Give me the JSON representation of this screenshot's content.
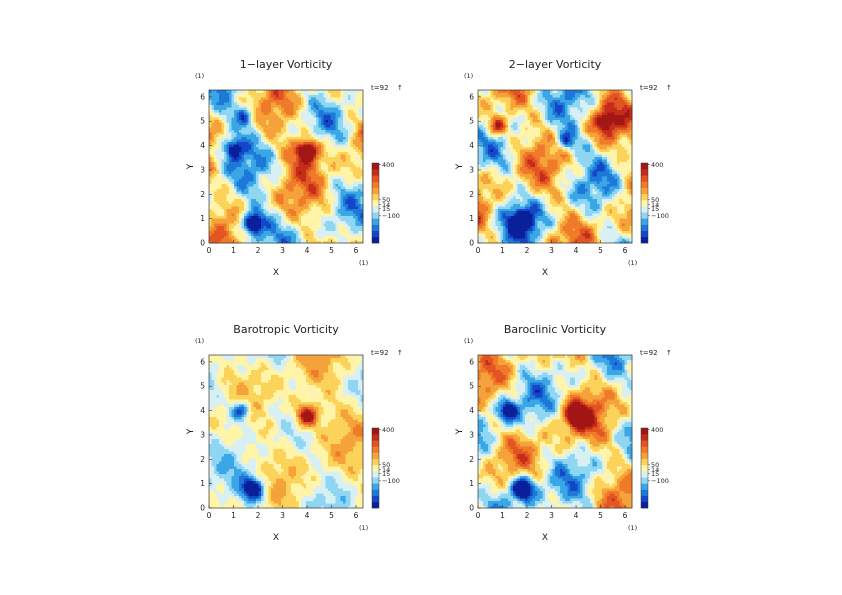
{
  "colors": {
    "scale": [
      "#0a1f9a",
      "#1446c8",
      "#1e78d8",
      "#3aa6e6",
      "#8fd6f2",
      "#d8f0f4",
      "#fff4a8",
      "#fbd35a",
      "#f5a23a",
      "#ef7a2a",
      "#e25422",
      "#c42d1a",
      "#a31616"
    ]
  },
  "chart_data": [
    {
      "type": "heatmap",
      "title": "1−layer Vorticity",
      "xlabel": "X",
      "ylabel": "Y",
      "x_unit": "(1)",
      "y_unit": "(1)",
      "time_label": "t=92",
      "time_arrow": "↑",
      "xlim": [
        0,
        6.283
      ],
      "ylim": [
        0,
        6.283
      ],
      "x_ticks": [
        "0",
        "1",
        "2",
        "3",
        "4",
        "5",
        "6"
      ],
      "y_ticks": [
        "0",
        "1",
        "2",
        "3",
        "4",
        "5",
        "6"
      ],
      "colorbar_labels": [
        "400",
        "50",
        "14",
        "15",
        "−100"
      ],
      "background_mix": 0.45,
      "vortices": [
        {
          "x": 1.8,
          "y": 0.8,
          "sign": "negative",
          "strength": 1.0
        },
        {
          "x": 4.0,
          "y": 3.8,
          "sign": "positive",
          "strength": 1.0
        },
        {
          "x": 1.0,
          "y": 3.9,
          "sign": "negative",
          "strength": 0.6
        },
        {
          "x": 1.5,
          "y": 5.2,
          "sign": "negative",
          "strength": 0.45
        }
      ]
    },
    {
      "type": "heatmap",
      "title": "2−layer Vorticity",
      "xlabel": "X",
      "ylabel": "Y",
      "x_unit": "(1)",
      "y_unit": "(1)",
      "time_label": "t=92",
      "time_arrow": "↑",
      "xlim": [
        0,
        6.283
      ],
      "ylim": [
        0,
        6.283
      ],
      "x_ticks": [
        "0",
        "1",
        "2",
        "3",
        "4",
        "5",
        "6"
      ],
      "y_ticks": [
        "0",
        "1",
        "2",
        "3",
        "4",
        "5",
        "6"
      ],
      "colorbar_labels": [
        "400",
        "50",
        "14",
        "15",
        "−100"
      ],
      "background_mix": 0.5,
      "vortices": [
        {
          "x": 1.8,
          "y": 0.9,
          "sign": "negative",
          "strength": 0.8
        },
        {
          "x": 3.6,
          "y": 4.2,
          "sign": "negative",
          "strength": 0.5
        },
        {
          "x": 0.8,
          "y": 4.8,
          "sign": "positive",
          "strength": 0.6
        },
        {
          "x": 5.2,
          "y": 5.0,
          "sign": "positive",
          "strength": 0.5
        }
      ]
    },
    {
      "type": "heatmap",
      "title": "Barotropic Vorticity",
      "xlabel": "X",
      "ylabel": "Y",
      "x_unit": "(1)",
      "y_unit": "(1)",
      "time_label": "t=92",
      "time_arrow": "↑",
      "xlim": [
        0,
        6.283
      ],
      "ylim": [
        0,
        6.283
      ],
      "x_ticks": [
        "0",
        "1",
        "2",
        "3",
        "4",
        "5",
        "6"
      ],
      "y_ticks": [
        "0",
        "1",
        "2",
        "3",
        "4",
        "5",
        "6"
      ],
      "colorbar_labels": [
        "400",
        "50",
        "14",
        "15",
        "−100"
      ],
      "background_mix": 0.28,
      "vortices": [
        {
          "x": 1.8,
          "y": 0.8,
          "sign": "negative",
          "strength": 0.9
        },
        {
          "x": 4.0,
          "y": 3.8,
          "sign": "positive",
          "strength": 0.8
        },
        {
          "x": 1.3,
          "y": 4.0,
          "sign": "negative",
          "strength": 0.55
        }
      ]
    },
    {
      "type": "heatmap",
      "title": "Baroclinic Vorticity",
      "xlabel": "X",
      "ylabel": "Y",
      "x_unit": "(1)",
      "y_unit": "(1)",
      "time_label": "t=92",
      "time_arrow": "↑",
      "xlim": [
        0,
        6.283
      ],
      "ylim": [
        0,
        6.283
      ],
      "x_ticks": [
        "0",
        "1",
        "2",
        "3",
        "4",
        "5",
        "6"
      ],
      "y_ticks": [
        "0",
        "1",
        "2",
        "3",
        "4",
        "5",
        "6"
      ],
      "colorbar_labels": [
        "400",
        "50",
        "14",
        "15",
        "−100"
      ],
      "background_mix": 0.45,
      "vortices": [
        {
          "x": 1.8,
          "y": 0.8,
          "sign": "negative",
          "strength": 1.0
        },
        {
          "x": 4.0,
          "y": 3.8,
          "sign": "positive",
          "strength": 0.9
        },
        {
          "x": 1.2,
          "y": 4.0,
          "sign": "negative",
          "strength": 0.6
        }
      ]
    }
  ]
}
